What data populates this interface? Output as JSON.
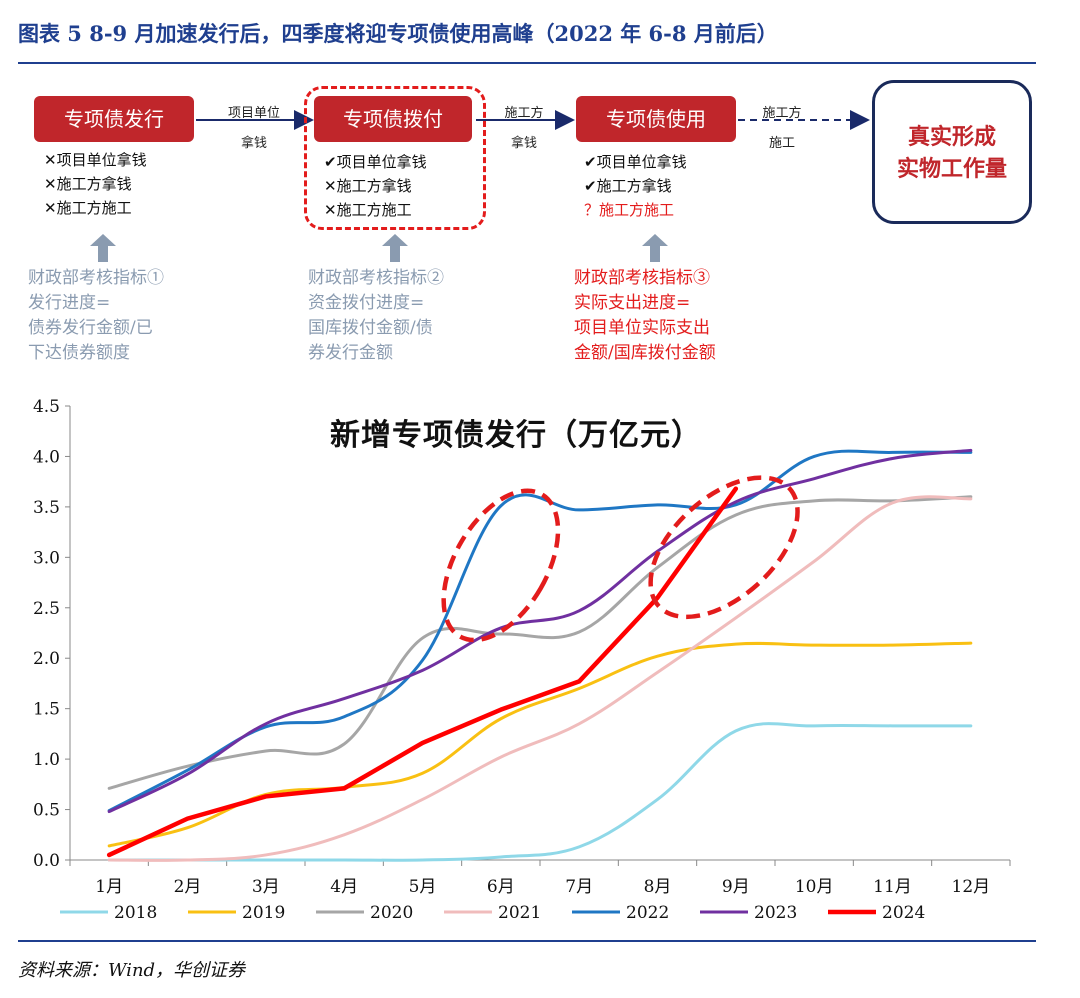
{
  "figure_title": "图表 5   8-9 月加速发行后，四季度将迎专项债使用高峰（2022 年 6-8 月前后）",
  "flow": {
    "steps": [
      {
        "label": "专项债发行",
        "checks": [
          {
            "mark": "✕",
            "text": "项目单位拿钱"
          },
          {
            "mark": "✕",
            "text": "施工方拿钱"
          },
          {
            "mark": "✕",
            "text": "施工方施工"
          }
        ],
        "metric": [
          "财政部考核指标①",
          "发行进度=",
          "债券发行金额/已",
          "下达债券额度"
        ]
      },
      {
        "label": "专项债拨付",
        "checks": [
          {
            "mark": "✔",
            "text": "项目单位拿钱"
          },
          {
            "mark": "✕",
            "text": "施工方拿钱"
          },
          {
            "mark": "✕",
            "text": "施工方施工"
          }
        ],
        "metric": [
          "财政部考核指标②",
          "资金拨付进度=",
          "国库拨付金额/债",
          "券发行金额"
        ]
      },
      {
        "label": "专项债使用",
        "checks": [
          {
            "mark": "✔",
            "text": "项目单位拿钱"
          },
          {
            "mark": "✔",
            "text": "施工方拿钱"
          },
          {
            "mark": "？",
            "text": "施工方施工"
          }
        ],
        "metric": [
          "财政部考核指标③",
          "实际支出进度=",
          "项目单位实际支出",
          "金额/国库拨付金额"
        ]
      }
    ],
    "arrows": [
      {
        "line1": "项目单位",
        "line2": "拿钱"
      },
      {
        "line1": "施工方",
        "line2": "拿钱"
      },
      {
        "line1": "施工方",
        "line2": "施工"
      }
    ],
    "final": [
      "真实形成",
      "实物工作量"
    ]
  },
  "chart_data": {
    "type": "line",
    "title": "新增专项债发行（万亿元）",
    "xlabel": "",
    "ylabel": "",
    "categories": [
      "1月",
      "2月",
      "3月",
      "4月",
      "5月",
      "6月",
      "7月",
      "8月",
      "9月",
      "10月",
      "11月",
      "12月"
    ],
    "ylim": [
      0,
      4.5
    ],
    "yticks": [
      "0.0",
      "0.5",
      "1.0",
      "1.5",
      "2.0",
      "2.5",
      "3.0",
      "3.5",
      "4.0",
      "4.5"
    ],
    "series": [
      {
        "name": "2018",
        "color": "#8fd8e8",
        "smooth": true,
        "values": [
          0.0,
          0.0,
          0.0,
          0.0,
          0.0,
          0.03,
          0.13,
          0.6,
          1.28,
          1.33,
          1.33,
          1.33
        ]
      },
      {
        "name": "2019",
        "color": "#f9c012",
        "smooth": true,
        "values": [
          0.14,
          0.32,
          0.65,
          0.72,
          0.86,
          1.4,
          1.7,
          2.02,
          2.14,
          2.13,
          2.13,
          2.15
        ]
      },
      {
        "name": "2020",
        "color": "#a6a6a6",
        "smooth": true,
        "values": [
          0.71,
          0.93,
          1.08,
          1.15,
          2.2,
          2.24,
          2.26,
          2.9,
          3.42,
          3.56,
          3.56,
          3.6
        ]
      },
      {
        "name": "2021",
        "color": "#f0bcbc",
        "smooth": true,
        "values": [
          0.0,
          0.0,
          0.05,
          0.25,
          0.6,
          1.02,
          1.35,
          1.86,
          2.4,
          2.96,
          3.54,
          3.58
        ]
      },
      {
        "name": "2022",
        "color": "#1f77c4",
        "smooth": true,
        "values": [
          0.49,
          0.89,
          1.32,
          1.42,
          1.98,
          3.51,
          3.47,
          3.52,
          3.52,
          4.0,
          4.04,
          4.04
        ]
      },
      {
        "name": "2023",
        "color": "#7030a0",
        "smooth": true,
        "values": [
          0.48,
          0.85,
          1.35,
          1.6,
          1.88,
          2.3,
          2.47,
          3.06,
          3.55,
          3.78,
          3.98,
          4.06
        ]
      },
      {
        "name": "2024",
        "color": "#ff0000",
        "smooth": false,
        "width": 4.5,
        "values": [
          0.05,
          0.41,
          0.63,
          0.71,
          1.16,
          1.49,
          1.77,
          2.6,
          3.68,
          null,
          null,
          null
        ]
      }
    ],
    "legend": {
      "position": "bottom"
    }
  },
  "source": "资料来源：Wind，华创证券"
}
